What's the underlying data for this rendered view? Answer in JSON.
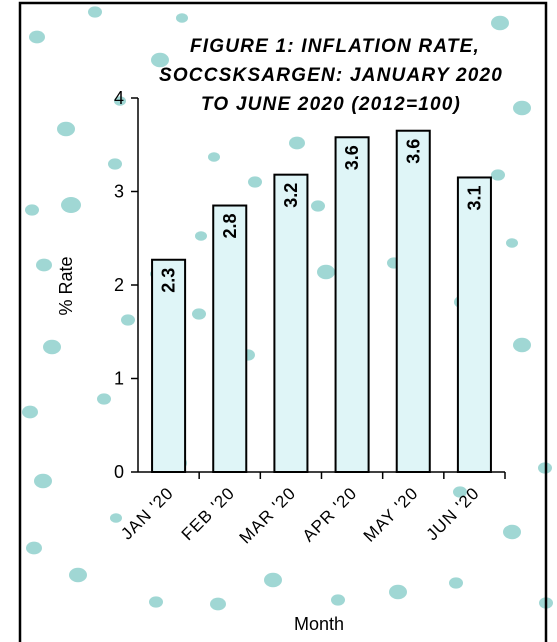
{
  "chart_data": {
    "type": "bar",
    "title_lines": [
      "FIGURE 1: INFLATION RATE,",
      "SOCCSKSARGEN: JANUARY 2020",
      "TO JUNE 2020 (2012=100)"
    ],
    "xlabel": "Month",
    "ylabel": "% Rate",
    "categories": [
      "JAN '20",
      "FEB '20",
      "MAR '20",
      "APR '20",
      "MAY '20",
      "JUN '20"
    ],
    "values": [
      2.27,
      2.85,
      3.18,
      3.58,
      3.65,
      3.15
    ],
    "data_labels": [
      "2.3",
      "2.8",
      "3.2",
      "3.6",
      "3.6",
      "3.1"
    ],
    "ylim": [
      0,
      4
    ],
    "yticks": [
      "0",
      "1",
      "2",
      "3",
      "4"
    ],
    "grid": false,
    "legend": "none",
    "colors": {
      "bar_fill": "#dff5f7",
      "bar_stroke": "#000000",
      "background_dots": "#8fd0cc"
    }
  }
}
